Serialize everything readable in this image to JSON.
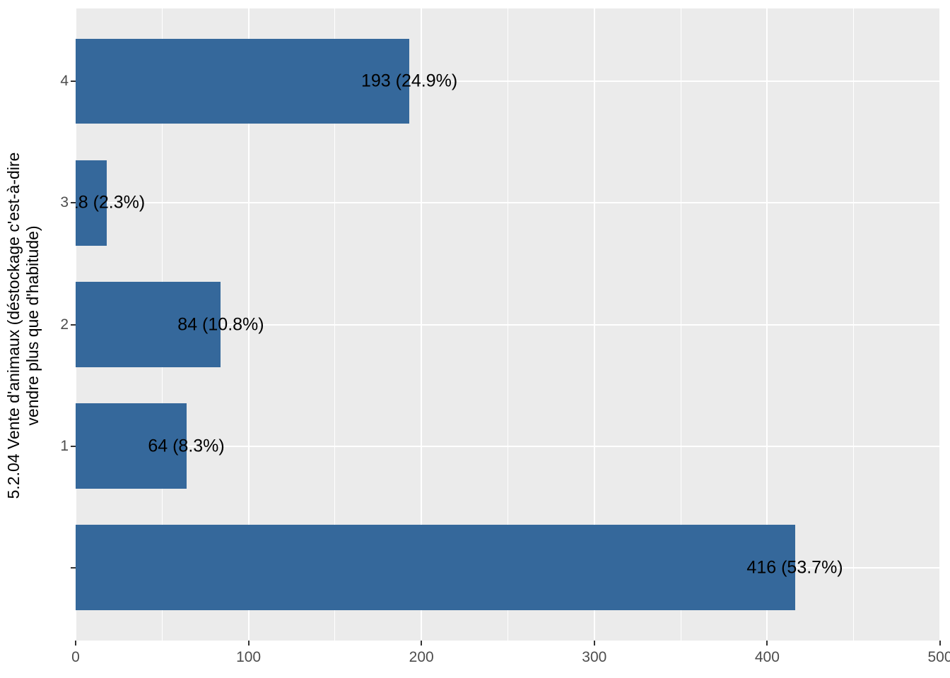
{
  "chart_data": {
    "type": "bar",
    "orientation": "horizontal",
    "title": "",
    "xlabel": "",
    "ylabel": "5.2.04 Vente d'animaux (déstockage c'est-à-dire vendre plus que d'habitude)",
    "ylabel_lines": [
      "5.2.04 Vente d'animaux (déstockage c'est-à-dire",
      "vendre plus que d'habitude)"
    ],
    "categories": [
      "4",
      "3",
      "2",
      "1",
      ""
    ],
    "values": [
      193,
      18,
      84,
      64,
      416
    ],
    "bar_labels": [
      "193 (24.9%)",
      "18 (2.3%)",
      "84 (10.8%)",
      "64 (8.3%)",
      "416 (53.7%)"
    ],
    "x_ticks": [
      0,
      100,
      200,
      300,
      400,
      500
    ],
    "x_minor_ticks": [
      50,
      150,
      250,
      350,
      450
    ],
    "xlim": [
      0,
      500
    ],
    "grid": "on",
    "legend": "none",
    "colors": {
      "bar_fill": "#35689B",
      "panel_background": "#EBEBEB",
      "grid_line": "#FFFFFF",
      "axis_text": "#4D4D4D",
      "tick_mark": "#333333",
      "bar_label_text": "#000000",
      "axis_title_text": "#000000",
      "figure_background": "#FFFFFF"
    }
  }
}
